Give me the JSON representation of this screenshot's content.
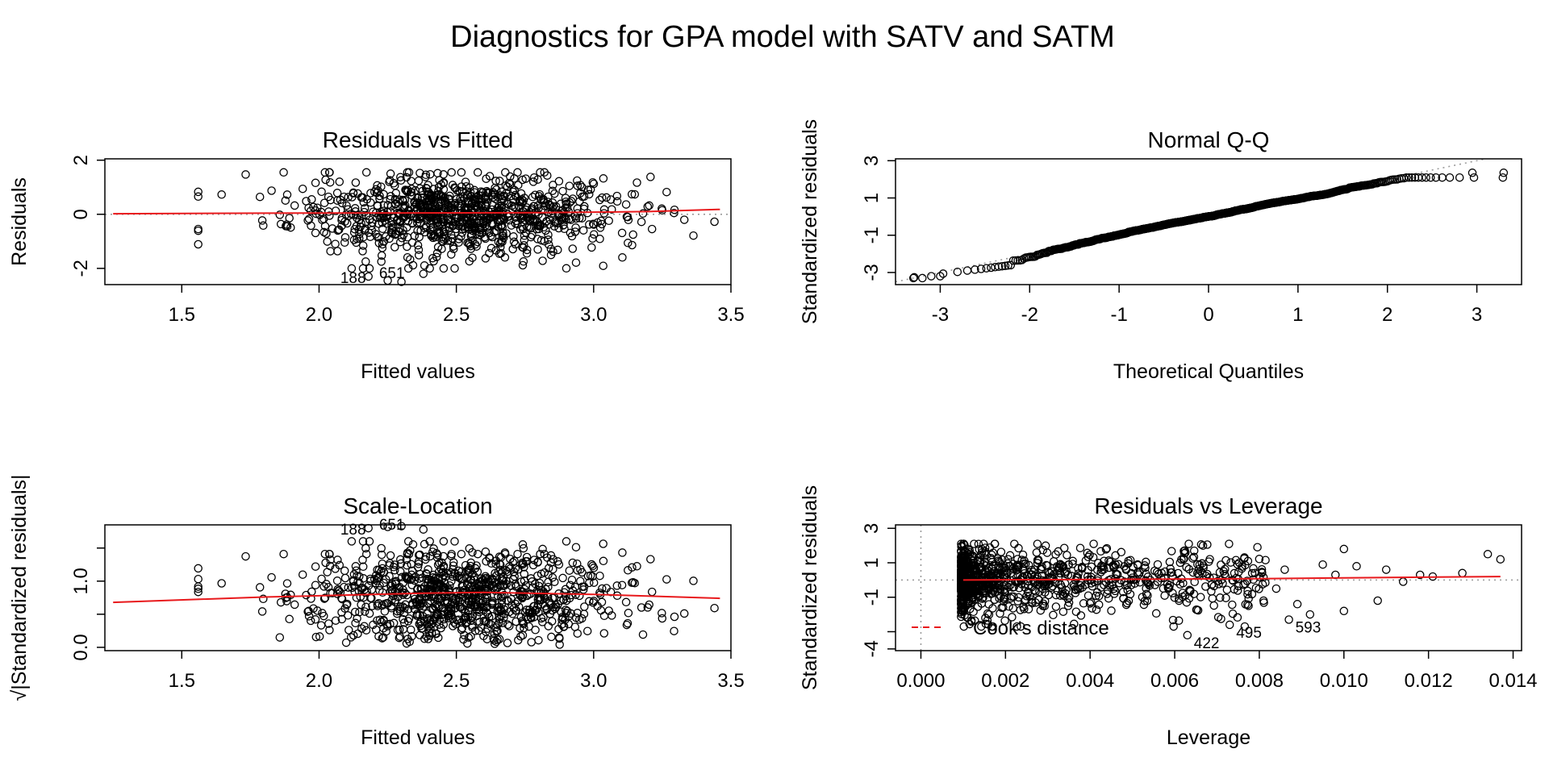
{
  "figure": {
    "title": "Diagnostics for GPA model with SATV and SATM"
  },
  "chart_data": [
    {
      "id": "rvf",
      "type": "scatter",
      "title": "Residuals vs Fitted",
      "xlabel": "Fitted values",
      "ylabel": "Residuals",
      "xlim": [
        1.22,
        3.5
      ],
      "ylim": [
        -2.6,
        2.05
      ],
      "xticks": [
        1.5,
        2.0,
        2.5,
        3.0,
        3.5
      ],
      "xtick_labels": [
        "1.5",
        "2.0",
        "2.5",
        "3.0",
        "3.5"
      ],
      "yticks": [
        -2,
        0,
        2
      ],
      "ytick_labels": [
        "-2",
        "0",
        "2"
      ],
      "reference_y": 0,
      "smooth": {
        "x": [
          1.25,
          1.8,
          2.3,
          2.8,
          3.2,
          3.46
        ],
        "y": [
          0.02,
          0.04,
          0.05,
          0.06,
          0.1,
          0.18
        ]
      },
      "highlight": [
        {
          "x": 2.18,
          "y": -2.3,
          "label": ""
        },
        {
          "x": 2.25,
          "y": -2.45,
          "label": ""
        },
        {
          "x": 2.3,
          "y": -2.5,
          "label": ""
        },
        {
          "x": 2.38,
          "y": -2.2,
          "label": ""
        }
      ],
      "point_labels": [
        "188",
        "651"
      ],
      "approx_points": 1000
    },
    {
      "id": "qq",
      "type": "scatter",
      "title": "Normal Q-Q",
      "xlabel": "Theoretical Quantiles",
      "ylabel": "Standardized residuals",
      "xlim": [
        -3.5,
        3.5
      ],
      "ylim": [
        -3.65,
        3.1
      ],
      "xticks": [
        -3,
        -2,
        -1,
        0,
        1,
        2,
        3
      ],
      "xtick_labels": [
        "-3",
        "-2",
        "-1",
        "0",
        "1",
        "2",
        "3"
      ],
      "yticks": [
        -3,
        -1,
        1,
        3
      ],
      "ytick_labels": [
        "-3",
        "-1",
        "1",
        "3"
      ],
      "reference_line": {
        "slope": 1,
        "intercept": 0
      },
      "extremes": [
        {
          "x": -3.3,
          "y": -3.3
        },
        {
          "x": -3.2,
          "y": -3.3
        },
        {
          "x": -3.1,
          "y": -3.2
        },
        {
          "x": -3.0,
          "y": -3.2
        },
        {
          "x": 2.95,
          "y": 2.35
        },
        {
          "x": 3.3,
          "y": 2.35
        }
      ],
      "approx_points": 1000
    },
    {
      "id": "sl",
      "type": "scatter",
      "title": "Scale-Location",
      "xlabel": "Fitted values",
      "ylabel": "√|Standardized residuals|",
      "xlim": [
        1.22,
        3.5
      ],
      "ylim": [
        -0.05,
        1.85
      ],
      "xticks": [
        1.5,
        2.0,
        2.5,
        3.0,
        3.5
      ],
      "xtick_labels": [
        "1.5",
        "2.0",
        "2.5",
        "3.0",
        "3.5"
      ],
      "yticks": [
        0.0,
        0.5,
        1.0,
        1.5
      ],
      "ytick_labels": [
        "0.0",
        "",
        "1.0",
        ""
      ],
      "smooth": {
        "x": [
          1.25,
          1.8,
          2.4,
          2.6,
          3.0,
          3.46
        ],
        "y": [
          0.68,
          0.76,
          0.82,
          0.83,
          0.8,
          0.74
        ]
      },
      "highlight": [
        {
          "x": 2.18,
          "y": 1.8,
          "label": ""
        },
        {
          "x": 2.25,
          "y": 1.82,
          "label": ""
        },
        {
          "x": 2.3,
          "y": 1.83,
          "label": ""
        },
        {
          "x": 2.38,
          "y": 1.78,
          "label": ""
        }
      ],
      "point_labels": [
        "188",
        "651"
      ],
      "approx_points": 1000
    },
    {
      "id": "rvl",
      "type": "scatter",
      "title": "Residuals vs Leverage",
      "xlabel": "Leverage",
      "ylabel": "Standardized residuals",
      "xlim": [
        -0.0006,
        0.0142
      ],
      "ylim": [
        -4.1,
        3.2
      ],
      "xticks": [
        0,
        0.002,
        0.004,
        0.006,
        0.008,
        0.01,
        0.012,
        0.014
      ],
      "xtick_labels": [
        "0.000",
        "0.002",
        "0.004",
        "0.006",
        "0.008",
        "0.010",
        "0.012",
        "0.014"
      ],
      "yticks": [
        -4,
        -1,
        1,
        3
      ],
      "ytick_labels": [
        "-4",
        "-1",
        "1",
        "3"
      ],
      "ytick_minor": [
        -3
      ],
      "reference_y": 0,
      "reference_x": 0,
      "smooth": {
        "x": [
          0.001,
          0.004,
          0.008,
          0.0137
        ],
        "y": [
          0.0,
          0.03,
          0.08,
          0.2
        ]
      },
      "labeled": [
        {
          "x": 0.0063,
          "y": -3.2,
          "label": "422"
        },
        {
          "x": 0.0073,
          "y": -2.6,
          "label": "495"
        },
        {
          "x": 0.0087,
          "y": -2.3,
          "label": "593"
        }
      ],
      "tail_points": [
        {
          "x": 0.0081,
          "y": -1.2
        },
        {
          "x": 0.0084,
          "y": -0.5
        },
        {
          "x": 0.0086,
          "y": 0.6
        },
        {
          "x": 0.0089,
          "y": -1.4
        },
        {
          "x": 0.0092,
          "y": -2.0
        },
        {
          "x": 0.0095,
          "y": 0.9
        },
        {
          "x": 0.0098,
          "y": 0.3
        },
        {
          "x": 0.01,
          "y": 1.8
        },
        {
          "x": 0.01,
          "y": -1.8
        },
        {
          "x": 0.0103,
          "y": 0.8
        },
        {
          "x": 0.0108,
          "y": -1.2
        },
        {
          "x": 0.011,
          "y": 0.6
        },
        {
          "x": 0.0114,
          "y": -0.1
        },
        {
          "x": 0.0118,
          "y": 0.3
        },
        {
          "x": 0.0121,
          "y": 0.2
        },
        {
          "x": 0.0128,
          "y": 0.4
        },
        {
          "x": 0.0134,
          "y": 1.5
        },
        {
          "x": 0.0137,
          "y": 1.2
        }
      ],
      "legend": {
        "label": "Cook's distance",
        "position": "bottom-left"
      },
      "approx_points": 1000
    }
  ]
}
